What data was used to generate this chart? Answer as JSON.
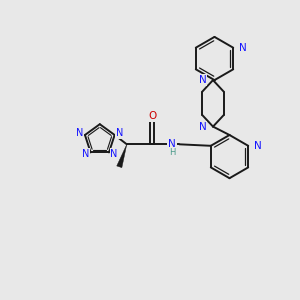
{
  "background_color": "#e8e8e8",
  "bond_color": "#1a1a1a",
  "N_color": "#1414ff",
  "O_color": "#cc0000",
  "H_color": "#4a9a8a",
  "bond_lw": 1.4,
  "inner_lw": 0.9,
  "font_size": 7.0,
  "figsize": [
    3.0,
    3.0
  ],
  "dpi": 100,
  "xlim": [
    0.0,
    10.0
  ],
  "ylim": [
    0.0,
    10.0
  ]
}
